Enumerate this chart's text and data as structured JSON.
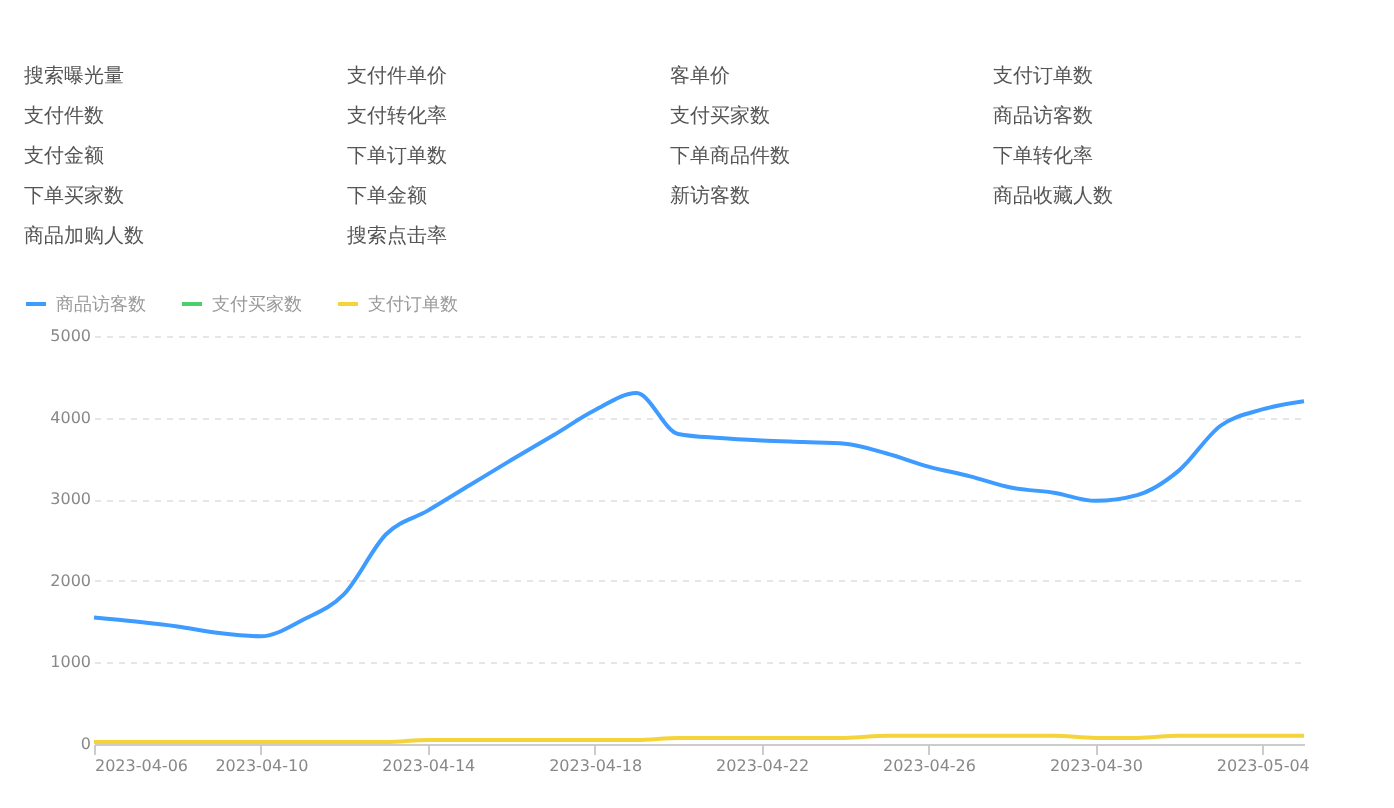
{
  "chart_data": {
    "type": "line",
    "annotations": [
      "搜索曝光量",
      "支付件单价",
      "客单价",
      "支付订单数",
      "支付件数",
      "支付转化率",
      "支付买家数",
      "商品访客数",
      "支付金额",
      "下单订单数",
      "下单商品件数",
      "下单转化率",
      "下单买家数",
      "下单金额",
      "新访客数",
      "商品收藏人数",
      "商品加购人数",
      "搜索点击率"
    ],
    "x": [
      "2023-04-06",
      "2023-04-07",
      "2023-04-08",
      "2023-04-09",
      "2023-04-10",
      "2023-04-11",
      "2023-04-12",
      "2023-04-13",
      "2023-04-14",
      "2023-04-15",
      "2023-04-16",
      "2023-04-17",
      "2023-04-18",
      "2023-04-19",
      "2023-04-20",
      "2023-04-21",
      "2023-04-22",
      "2023-04-23",
      "2023-04-24",
      "2023-04-25",
      "2023-04-26",
      "2023-04-27",
      "2023-04-28",
      "2023-04-29",
      "2023-04-30",
      "2023-05-01",
      "2023-05-02",
      "2023-05-03",
      "2023-05-04",
      "2023-05-05"
    ],
    "series": [
      {
        "name": "商品访客数",
        "color": "#3e9bff",
        "values": [
          1550,
          1500,
          1440,
          1360,
          1320,
          1520,
          1840,
          2570,
          2860,
          3170,
          3480,
          3780,
          4090,
          4300,
          3800,
          3750,
          3720,
          3700,
          3680,
          3560,
          3400,
          3280,
          3140,
          3080,
          2980,
          3050,
          3350,
          3900,
          4100,
          4200
        ]
      },
      {
        "name": "支付买家数",
        "color": "#4ccf6a",
        "values": [
          null,
          null,
          null,
          null,
          null,
          null,
          null,
          null,
          null,
          null,
          null,
          null,
          null,
          null,
          null,
          null,
          null,
          null,
          null,
          null,
          null,
          null,
          null,
          null,
          null,
          null,
          null,
          null,
          null,
          null
        ]
      },
      {
        "name": "支付订单数",
        "color": "#f5d43b",
        "values": [
          25,
          25,
          25,
          25,
          25,
          25,
          25,
          25,
          50,
          50,
          50,
          50,
          50,
          50,
          75,
          75,
          75,
          75,
          75,
          100,
          100,
          100,
          100,
          100,
          75,
          75,
          100,
          100,
          100,
          100
        ]
      }
    ],
    "xlim": [
      "2023-04-06",
      "2023-05-05"
    ],
    "xticks": [
      "2023-04-06",
      "2023-04-10",
      "2023-04-14",
      "2023-04-18",
      "2023-04-22",
      "2023-04-26",
      "2023-04-30",
      "2023-05-04"
    ],
    "ylim": [
      0,
      5000
    ],
    "yticks": [
      0,
      1000,
      2000,
      3000,
      4000,
      5000
    ],
    "grid": "y",
    "legend": "top left",
    "marker": "none",
    "line_style": "solid"
  }
}
